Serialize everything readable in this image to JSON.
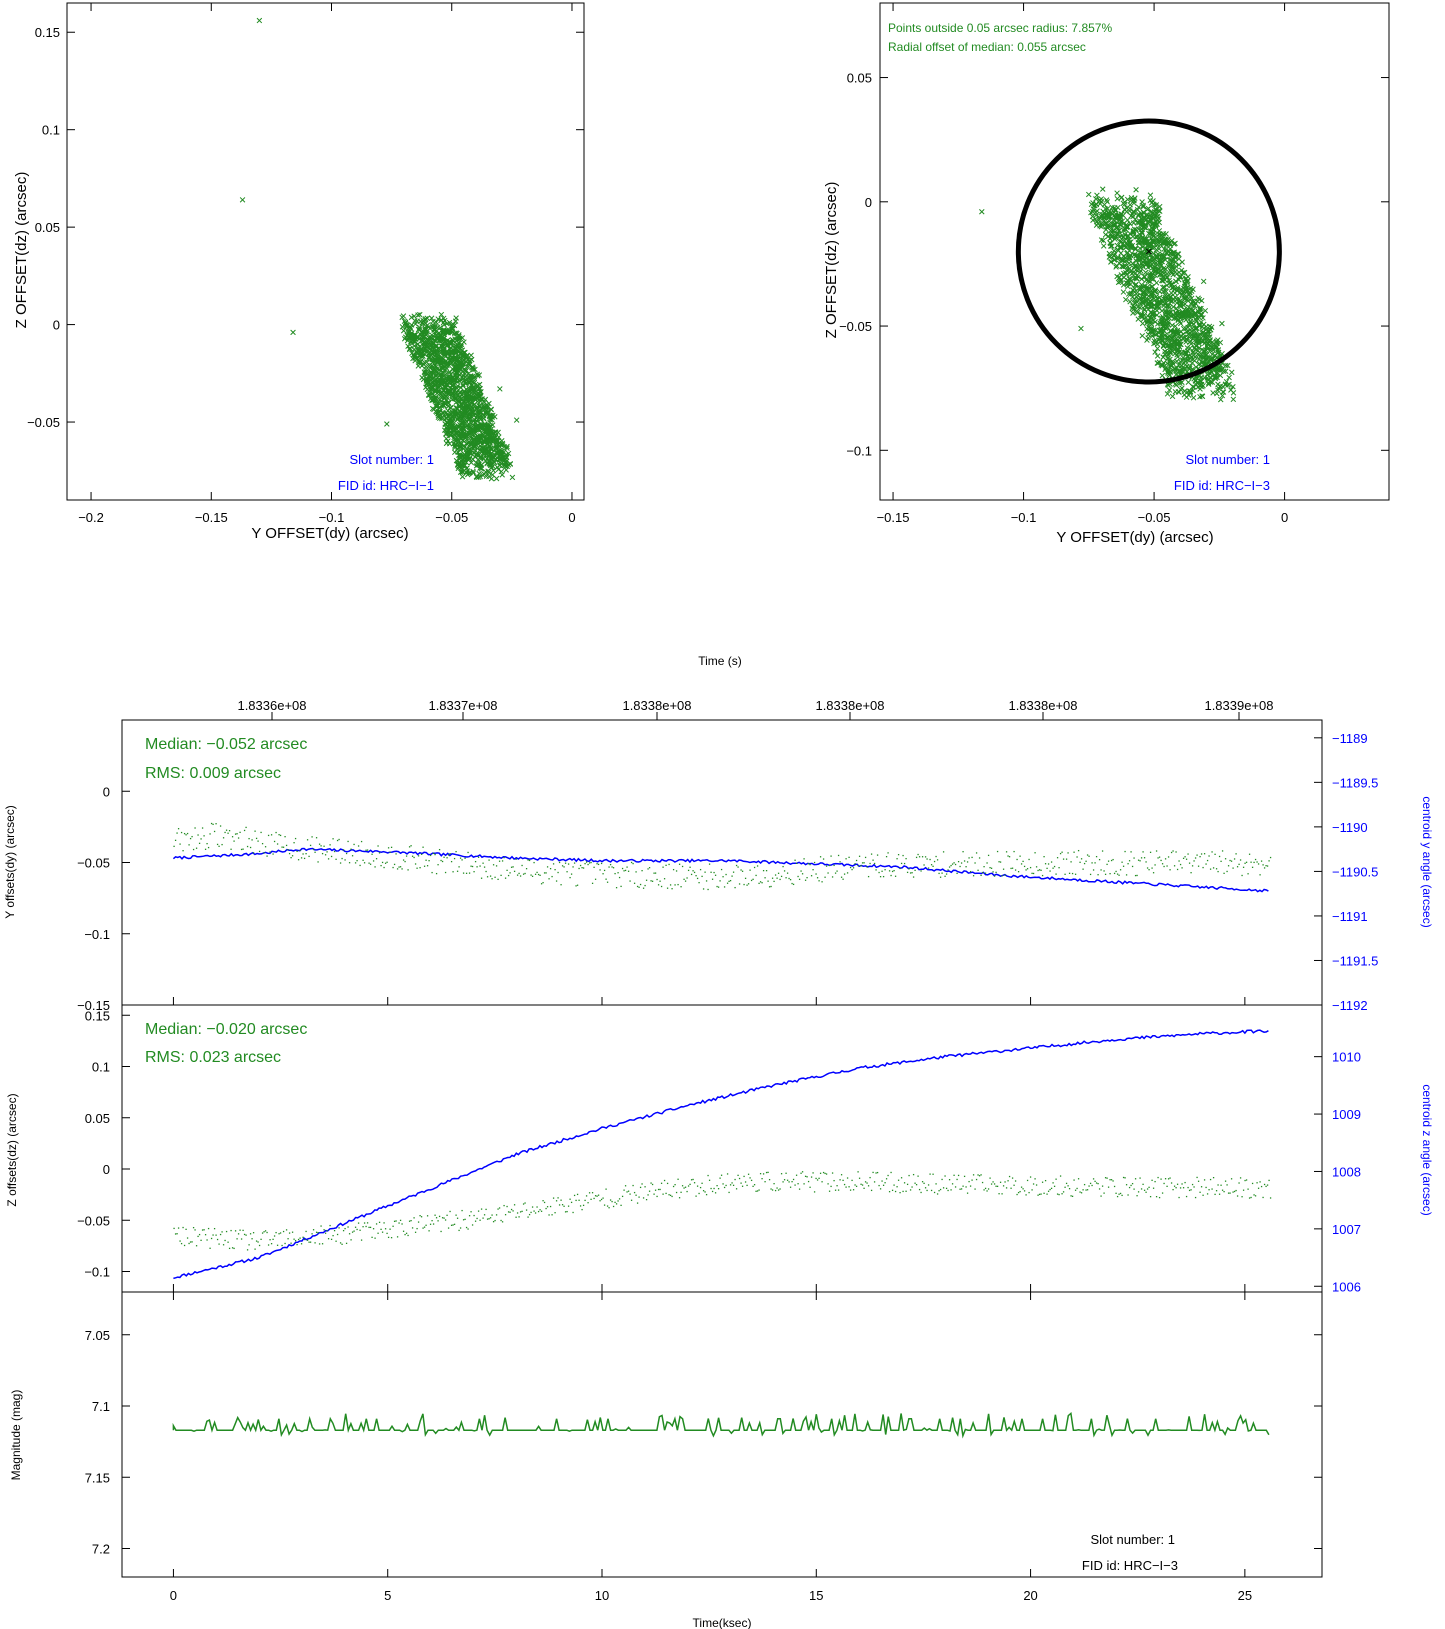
{
  "chart_data": [
    {
      "type": "scatter",
      "xlabel": "Y OFFSET(dy) (arcsec)",
      "ylabel": "Z OFFSET(dz) (arcsec)",
      "xlim": [
        -0.21,
        0.005
      ],
      "ylim": [
        -0.09,
        0.165
      ],
      "xticks": [
        "-0.2",
        "-0.15",
        "-0.1",
        "-0.05",
        "0"
      ],
      "yticks": [
        "-0.05",
        "0",
        "0.05",
        "0.1",
        "0.15"
      ],
      "cluster": {
        "x_range": [
          -0.07,
          -0.03
        ],
        "y_range": [
          -0.08,
          0.003
        ]
      },
      "outliers": [
        {
          "x": -0.13,
          "y": 0.156
        },
        {
          "x": -0.137,
          "y": 0.064
        },
        {
          "x": -0.116,
          "y": -0.004
        },
        {
          "x": -0.077,
          "y": -0.051
        },
        {
          "x": -0.03,
          "y": -0.033
        },
        {
          "x": -0.023,
          "y": -0.049
        }
      ],
      "annotations": {
        "slot": "Slot number: 1",
        "fid": "FID id: HRC−I−1"
      },
      "colors": {
        "points": "#228b22",
        "annotation": "#0000ff"
      }
    },
    {
      "type": "scatter",
      "xlabel": "Y OFFSET(dy) (arcsec)",
      "ylabel": "Z OFFSET(dz) (arcsec)",
      "xlim": [
        -0.155,
        0.04
      ],
      "ylim": [
        -0.12,
        0.08
      ],
      "xticks": [
        "-0.15",
        "-0.1",
        "-0.05",
        "0"
      ],
      "yticks": [
        "-0.1",
        "-0.05",
        "0",
        "0.05"
      ],
      "circle": {
        "center_x": -0.052,
        "center_y": -0.02,
        "radius": 0.05
      },
      "median": {
        "x": -0.052,
        "y": -0.02
      },
      "cluster": {
        "x_range": [
          -0.075,
          -0.022
        ],
        "y_range": [
          -0.08,
          0.003
        ]
      },
      "outliers": [
        {
          "x": -0.116,
          "y": -0.004
        },
        {
          "x": -0.078,
          "y": -0.051
        },
        {
          "x": -0.031,
          "y": -0.032
        },
        {
          "x": -0.024,
          "y": -0.049
        }
      ],
      "stats_text": [
        "Points outside 0.05 arcsec radius: 7.857%",
        "Radial offset of median: 0.055 arcsec"
      ],
      "annotations": {
        "slot": "Slot number: 1",
        "fid": "FID id: HRC−I−3"
      },
      "colors": {
        "points": "#228b22",
        "circle": "#000000",
        "annotation": "#0000ff"
      }
    },
    {
      "type": "scatter",
      "panel": "y-offsets",
      "ylabel": "Y offsets(dy) (arcsec)",
      "ylim": [
        -0.15,
        0.05
      ],
      "yticks": [
        "0",
        "-0.05",
        "-0.1",
        "-0.15"
      ],
      "right_ylabel": "centroid y angle (arcsec)",
      "right_ylim": [
        -1192,
        -1188.8
      ],
      "right_yticks": [
        "−1189",
        "−1189.5",
        "−1190",
        "−1190.5",
        "−1191",
        "−1191.5",
        "−1192"
      ],
      "offset_trend": {
        "x": [
          0,
          1,
          2.5,
          5,
          8,
          10,
          13,
          16,
          20,
          25.6
        ],
        "y": [
          -0.035,
          -0.03,
          -0.038,
          -0.045,
          -0.055,
          -0.058,
          -0.06,
          -0.052,
          -0.05,
          -0.05
        ]
      },
      "angle_trend": {
        "x": [
          0,
          2,
          3,
          5,
          8,
          10,
          13,
          17,
          19.5,
          22,
          25.6
        ],
        "y": [
          -1190.35,
          -1190.3,
          -1190.25,
          -1190.28,
          -1190.35,
          -1190.38,
          -1190.38,
          -1190.45,
          -1190.55,
          -1190.62,
          -1190.72
        ]
      },
      "stats_text": [
        "Median: −0.052 arcsec",
        "RMS: 0.009 arcsec"
      ],
      "colors": {
        "offsets": "#228b22",
        "angle": "#0000ff"
      }
    },
    {
      "type": "scatter",
      "panel": "z-offsets",
      "ylabel": "Z offsets(dz) (arcsec)",
      "ylim": [
        -0.12,
        0.16
      ],
      "yticks": [
        "0.15",
        "0.1",
        "0.05",
        "0",
        "-0.05",
        "-0.1"
      ],
      "right_ylabel": "centroid z angle (arcsec)",
      "right_ylim": [
        1005.9,
        1010.9
      ],
      "right_yticks": [
        "1006",
        "1007",
        "1008",
        "1009",
        "1010"
      ],
      "offset_trend": {
        "x": [
          0,
          2,
          4,
          7,
          10,
          13,
          16,
          19,
          22,
          25.6
        ],
        "y": [
          -0.065,
          -0.07,
          -0.063,
          -0.048,
          -0.028,
          -0.012,
          -0.012,
          -0.015,
          -0.017,
          -0.018
        ]
      },
      "angle_trend": {
        "x": [
          0,
          2,
          4,
          6,
          8,
          10,
          12,
          14,
          16,
          18,
          20,
          22,
          24,
          25.6
        ],
        "y": [
          1006.15,
          1006.5,
          1007.1,
          1007.7,
          1008.3,
          1008.75,
          1009.15,
          1009.5,
          1009.8,
          1010.0,
          1010.15,
          1010.3,
          1010.4,
          1010.45
        ]
      },
      "stats_text": [
        "Median: −0.020 arcsec",
        "RMS: 0.023 arcsec"
      ],
      "colors": {
        "offsets": "#228b22",
        "angle": "#0000ff"
      }
    },
    {
      "type": "line",
      "panel": "magnitude",
      "xlabel": "Time(ksec)",
      "ylabel": "Magnitude (mag)",
      "xlim": [
        -1.2,
        26.8
      ],
      "xticks": [
        "0",
        "5",
        "10",
        "15",
        "20",
        "25"
      ],
      "ylim": [
        7.22,
        7.02
      ],
      "yticks": [
        "7.05",
        "7.1",
        "7.15",
        "7.2"
      ],
      "baseline": 7.117,
      "baseline_x": [
        0,
        25.6
      ],
      "annotations": {
        "slot": "Slot number: 1",
        "fid": "FID id: HRC−I−3"
      },
      "colors": {
        "line": "#228b22"
      }
    }
  ],
  "top_axis": {
    "label": "Time (s)",
    "ticks": [
      "1.8336e+08",
      "1.8337e+08",
      "1.8338e+08",
      "1.8338e+08",
      "1.8338e+08",
      "1.8339e+08"
    ]
  }
}
